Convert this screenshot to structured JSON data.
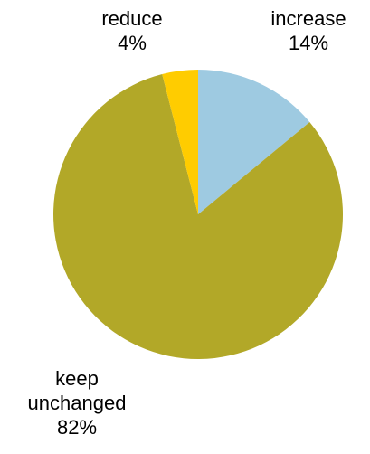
{
  "chart_data": {
    "type": "pie",
    "title": "",
    "slices": [
      {
        "label": "increase",
        "label_lines": [
          "increase"
        ],
        "value": 14,
        "value_label": "14%",
        "color": "#9ecae1"
      },
      {
        "label": "keep unchanged",
        "label_lines": [
          "keep",
          "unchanged"
        ],
        "value": 82,
        "value_label": "82%",
        "color": "#b2a828"
      },
      {
        "label": "reduce",
        "label_lines": [
          "reduce"
        ],
        "value": 4,
        "value_label": "4%",
        "color": "#ffcc00"
      }
    ],
    "start_angle_deg": 0,
    "direction": "clockwise",
    "legend": "none"
  }
}
